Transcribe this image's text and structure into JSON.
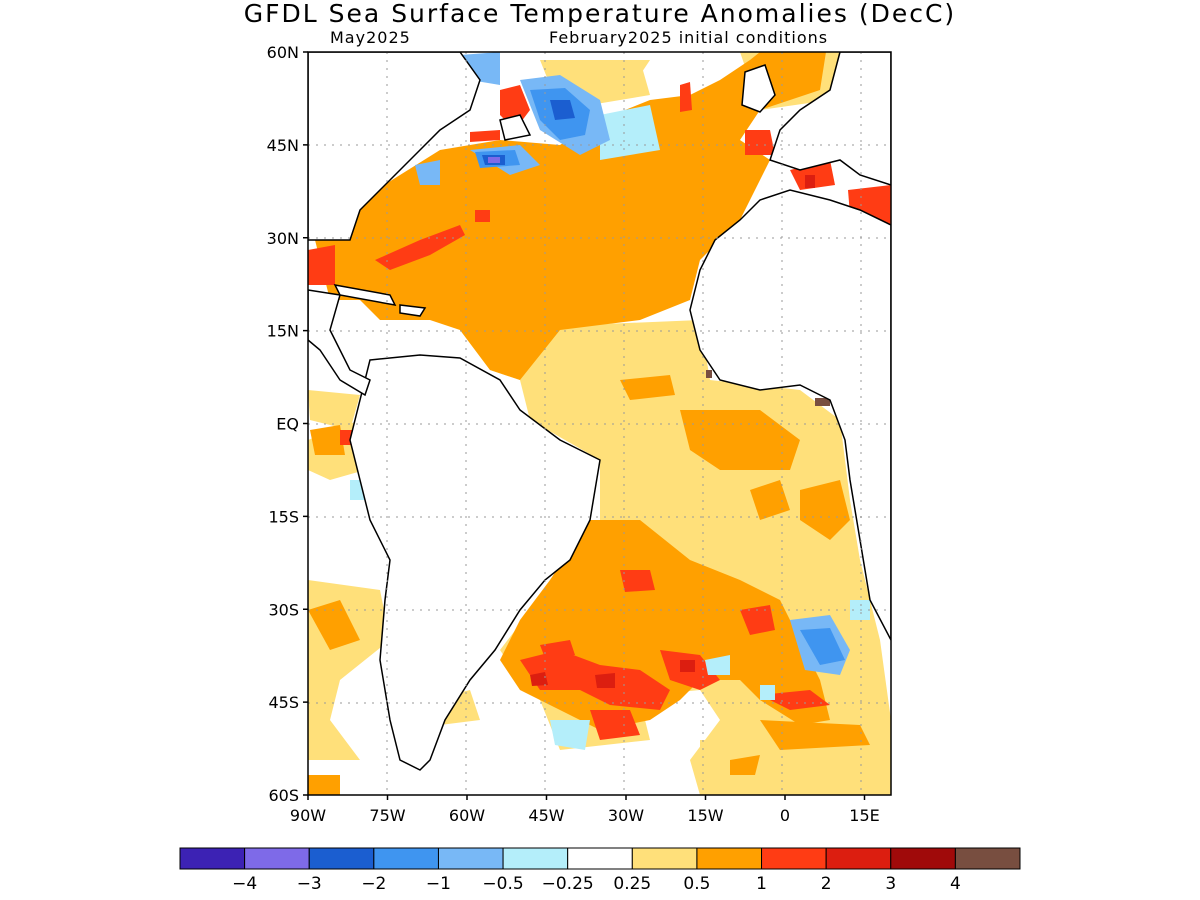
{
  "title": "GFDL Sea Surface Temperature Anomalies (DecC)",
  "subtitle_left": "May2025",
  "subtitle_right": "February2025 initial conditions",
  "lat_ticks": [
    {
      "lat": 60,
      "label": "60N"
    },
    {
      "lat": 45,
      "label": "45N"
    },
    {
      "lat": 30,
      "label": "30N"
    },
    {
      "lat": 15,
      "label": "15N"
    },
    {
      "lat": 0,
      "label": "EQ"
    },
    {
      "lat": -15,
      "label": "15S"
    },
    {
      "lat": -30,
      "label": "30S"
    },
    {
      "lat": -45,
      "label": "45S"
    },
    {
      "lat": -60,
      "label": "60S"
    }
  ],
  "lon_ticks": [
    {
      "lon": -90,
      "label": "90W"
    },
    {
      "lon": -75,
      "label": "75W"
    },
    {
      "lon": -60,
      "label": "60W"
    },
    {
      "lon": -45,
      "label": "45W"
    },
    {
      "lon": -30,
      "label": "30W"
    },
    {
      "lon": -15,
      "label": "15W"
    },
    {
      "lon": 0,
      "label": "0"
    },
    {
      "lon": 15,
      "label": "15E"
    }
  ],
  "colorbar": {
    "colors": [
      "#3c22b4",
      "#7e6ae8",
      "#1b5ed0",
      "#3f95f0",
      "#78b8f6",
      "#b4eefa",
      "#ffffff",
      "#ffe07a",
      "#ffa000",
      "#ff3c14",
      "#dc1e10",
      "#a00a0a",
      "#784e40"
    ],
    "labels": [
      "−4",
      "−3",
      "−2",
      "−1",
      "−0.5",
      "−0.25",
      "0.25",
      "0.5",
      "1",
      "2",
      "3",
      "4"
    ]
  },
  "anomaly_levels": {
    "neg_strong": "#3c22b4",
    "neg_2": "#1b5ed0",
    "neg_1": "#3f95f0",
    "neg_05": "#78b8f6",
    "neg_025": "#b4eefa",
    "pos_025": "#ffe07a",
    "pos_05": "#ffa000",
    "pos_1": "#ff3c14",
    "pos_2": "#dc1e10",
    "pos_4": "#784e40"
  }
}
